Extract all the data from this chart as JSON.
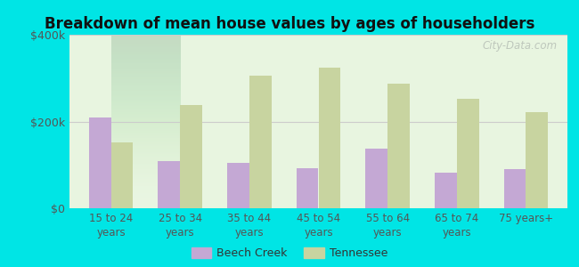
{
  "title": "Breakdown of mean house values by ages of householders",
  "categories": [
    "15 to 24\nyears",
    "25 to 34\nyears",
    "35 to 44\nyears",
    "45 to 54\nyears",
    "55 to 64\nyears",
    "65 to 74\nyears",
    "75 years+"
  ],
  "beech_creek": [
    210000,
    108000,
    105000,
    92000,
    138000,
    82000,
    90000
  ],
  "tennessee": [
    152000,
    238000,
    305000,
    325000,
    288000,
    252000,
    222000
  ],
  "beech_creek_color": "#c4a8d4",
  "tennessee_color": "#c8d4a0",
  "background_top": "#e8f5e0",
  "background_bottom": "#f0faf0",
  "outer_background": "#00e5e5",
  "ylim": [
    0,
    400000
  ],
  "yticks": [
    0,
    200000,
    400000
  ],
  "ytick_labels": [
    "$0",
    "$200k",
    "$400k"
  ],
  "watermark": "City-Data.com",
  "legend_labels": [
    "Beech Creek",
    "Tennessee"
  ],
  "bar_width": 0.32
}
